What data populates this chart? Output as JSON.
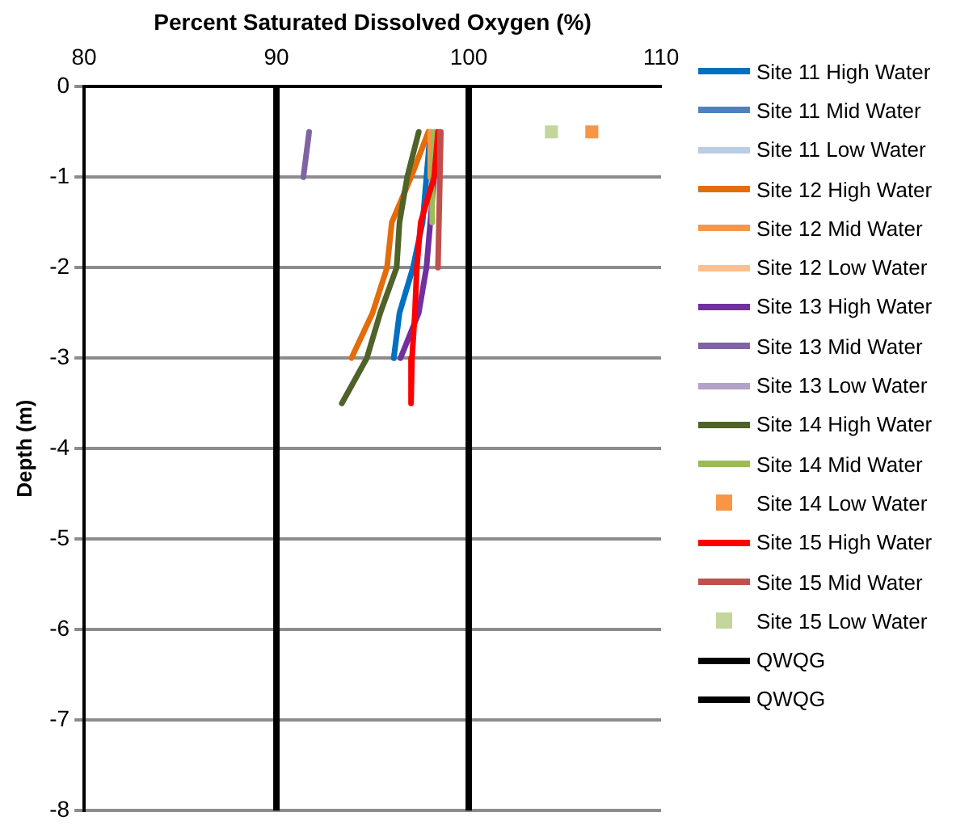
{
  "chart_data": {
    "type": "line",
    "xlabel": "Percent Saturated Dissolved Oxygen (%)",
    "ylabel": "Depth (m)",
    "xlim": [
      80,
      110
    ],
    "xticks": [
      80,
      90,
      100,
      110
    ],
    "ylim": [
      -8,
      0
    ],
    "yticks": [
      0,
      -1,
      -2,
      -3,
      -4,
      -5,
      -6,
      -7,
      -8
    ],
    "grid": "y",
    "legend": "right",
    "series": [
      {
        "name": "Site 11 High Water",
        "color": "#0070c0",
        "x": [
          98.0,
          97.8,
          97.6,
          97.1,
          96.4,
          96.1
        ],
        "values": [
          -0.5,
          -1,
          -1.5,
          -2,
          -2.5,
          -3
        ]
      },
      {
        "name": "Site 11 Mid Water",
        "color": "#4f81bd"
      },
      {
        "name": "Site 11 Low Water",
        "color": "#b9cde5"
      },
      {
        "name": "Site 12 High Water",
        "color": "#e46c0a",
        "x": [
          97.9,
          97.0,
          96.0,
          95.75,
          95.0,
          93.9
        ],
        "values": [
          -0.5,
          -1,
          -1.5,
          -2,
          -2.5,
          -3
        ]
      },
      {
        "name": "Site 12 Mid Water",
        "color": "#f79646",
        "x": [
          98.0,
          98.0
        ],
        "values": [
          -0.5,
          -1
        ]
      },
      {
        "name": "Site 12 Low Water",
        "color": "#fac090"
      },
      {
        "name": "Site 13 High Water",
        "color": "#7030a0",
        "x": [
          98.3,
          98.2,
          98.0,
          97.8,
          97.4,
          96.45
        ],
        "values": [
          -0.5,
          -1,
          -1.5,
          -2,
          -2.5,
          -3
        ]
      },
      {
        "name": "Site 13 Mid Water",
        "color": "#8064a2",
        "x": [
          91.7,
          91.4
        ],
        "values": [
          -0.5,
          -1
        ]
      },
      {
        "name": "Site 13 Low Water",
        "color": "#b3a2c7"
      },
      {
        "name": "Site 14 High Water",
        "color": "#4f6228",
        "x": [
          97.4,
          96.8,
          96.4,
          96.25,
          95.4,
          94.7,
          93.4
        ],
        "values": [
          -0.5,
          -1,
          -1.5,
          -2,
          -2.5,
          -3,
          -3.5
        ]
      },
      {
        "name": "Site 14 Mid Water",
        "color": "#9bbb59",
        "x": [
          98.2,
          98.1,
          98.1
        ],
        "values": [
          -0.5,
          -1,
          -1.5
        ]
      },
      {
        "name": "Site 14 Low Water",
        "type": "scatter",
        "marker": "square",
        "color": "#f79646",
        "x": [
          106.4
        ],
        "values": [
          -0.5
        ]
      },
      {
        "name": "Site 15 High Water",
        "color": "#ff0000",
        "x": [
          98.4,
          98.2,
          97.5,
          97.3,
          97.2,
          97.05,
          97.0
        ],
        "values": [
          -0.5,
          -1,
          -1.5,
          -2,
          -2.5,
          -3,
          -3.5
        ]
      },
      {
        "name": "Site 15 Mid Water",
        "color": "#c0504d",
        "x": [
          98.55,
          98.5,
          98.45,
          98.4
        ],
        "values": [
          -0.5,
          -1,
          -1.5,
          -2
        ]
      },
      {
        "name": "Site 15 Low Water",
        "type": "scatter",
        "marker": "square",
        "color": "#c3d69b",
        "x": [
          104.3
        ],
        "values": [
          -0.5
        ]
      },
      {
        "name": "QWQG",
        "color": "#000000",
        "x": [
          90,
          90
        ],
        "values": [
          0,
          -8
        ]
      },
      {
        "name": "QWQG",
        "color": "#000000",
        "x": [
          100,
          100
        ],
        "values": [
          0,
          -8
        ]
      }
    ]
  }
}
